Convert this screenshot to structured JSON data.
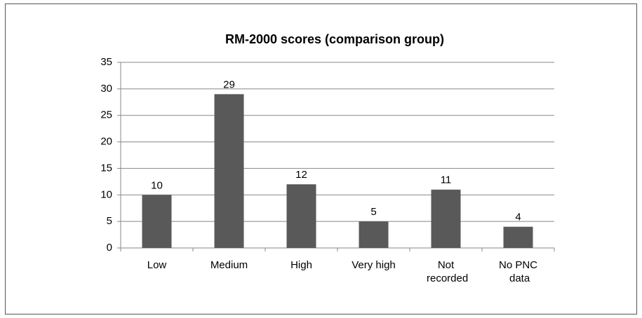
{
  "chart_data": {
    "type": "bar",
    "title": "RM-2000 scores (comparison group)",
    "categories": [
      "Low",
      "Medium",
      "High",
      "Very high",
      "Not recorded",
      "No PNC data"
    ],
    "values": [
      10,
      29,
      12,
      5,
      11,
      4
    ],
    "color": "#595959",
    "ylim": [
      0,
      35
    ],
    "yticks": [
      0,
      5,
      10,
      15,
      20,
      25,
      30,
      35
    ],
    "grid": true
  }
}
